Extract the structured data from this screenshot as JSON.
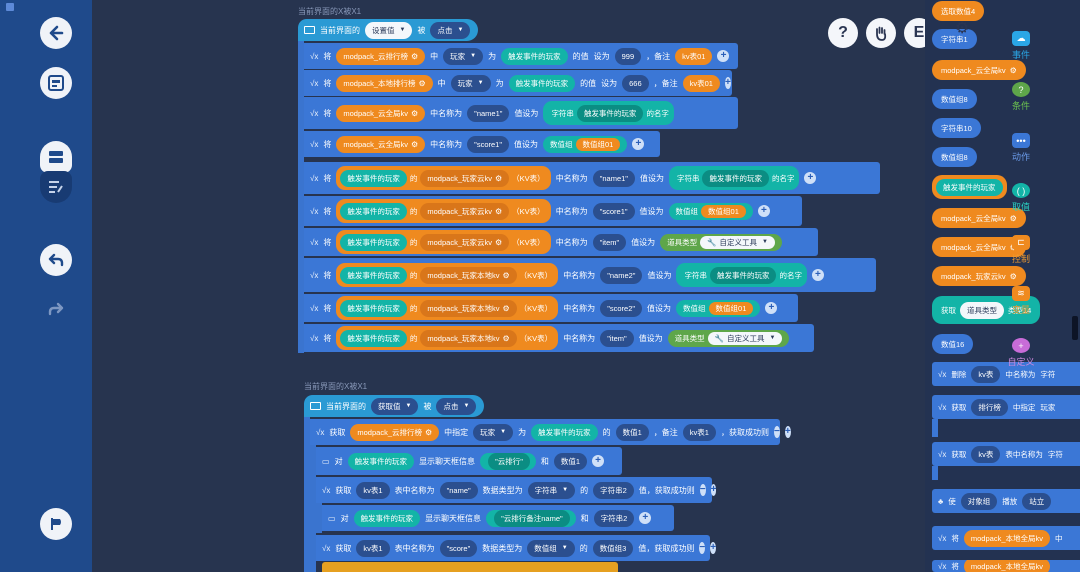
{
  "left_toolbar": {
    "items": [
      "back-arrow-icon",
      "code-block-icon",
      "stack-icon",
      "edit-list-icon",
      "undo-icon",
      "redo-icon",
      "run-flag-icon"
    ]
  },
  "scopes": [
    {
      "label": "当前界面的X被X1"
    },
    {
      "label": "当前界面的X被X1"
    }
  ],
  "hat1": {
    "prefix": "当前界面的",
    "target": "设置值",
    "mid": "被",
    "event": "点击"
  },
  "rows1": [
    {
      "parts": [
        "将",
        "modpack_云排行榜",
        "中",
        "玩家",
        "为",
        "触发事件的玩家",
        "的值",
        "设为",
        "999",
        "，备注",
        "kv表01"
      ]
    },
    {
      "parts": [
        "将",
        "modpack_本地排行榜",
        "中",
        "玩家",
        "为",
        "触发事件的玩家",
        "的值",
        "设为",
        "666",
        "，备注",
        "kv表01"
      ]
    },
    {
      "parts": [
        "将",
        "modpack_云全局kv",
        "中名称为",
        "\"name1\"",
        "值设为",
        "字符串",
        "触发事件的玩家",
        "的名字"
      ]
    },
    {
      "parts": [
        "将",
        "modpack_云全局kv",
        "中名称为",
        "\"score1\"",
        "值设为",
        "数值组",
        "数值组01"
      ]
    },
    {
      "parts": [
        "将",
        "触发事件的玩家",
        "的",
        "modpack_玩家云kv",
        "（KV表）",
        "中名称为",
        "\"name1\"",
        "值设为",
        "字符串",
        "触发事件的玩家",
        "的名字"
      ]
    },
    {
      "parts": [
        "将",
        "触发事件的玩家",
        "的",
        "modpack_玩家云kv",
        "（KV表）",
        "中名称为",
        "\"score1\"",
        "值设为",
        "数值组",
        "数值组01"
      ]
    },
    {
      "parts": [
        "将",
        "触发事件的玩家",
        "的",
        "modpack_玩家云kv",
        "（KV表）",
        "中名称为",
        "\"item\"",
        "值设为",
        "道具类型",
        "自定义工具"
      ]
    },
    {
      "parts": [
        "将",
        "触发事件的玩家",
        "的",
        "modpack_玩家本地kv",
        "（KV表）",
        "中名称为",
        "\"name2\"",
        "值设为",
        "字符串",
        "触发事件的玩家",
        "的名字"
      ]
    },
    {
      "parts": [
        "将",
        "触发事件的玩家",
        "的",
        "modpack_玩家本地kv",
        "（KV表）",
        "中名称为",
        "\"score2\"",
        "值设为",
        "数值组",
        "数值组01"
      ]
    },
    {
      "parts": [
        "将",
        "触发事件的玩家",
        "的",
        "modpack_玩家本地kv",
        "（KV表）",
        "中名称为",
        "\"item\"",
        "值设为",
        "道具类型",
        "自定义工具"
      ]
    }
  ],
  "hat2": {
    "prefix": "当前界面的",
    "target": "获取值",
    "mid": "被",
    "event": "点击"
  },
  "rows2": [
    {
      "parts": [
        "获取",
        "modpack_云排行榜",
        "中指定",
        "玩家",
        "为",
        "触发事件的玩家",
        "的",
        "数值1",
        "，备注",
        "kv表1",
        "，获取成功则"
      ]
    },
    {
      "parts": [
        "对",
        "触发事件的玩家",
        "显示聊天框信息",
        "\"云排行\"",
        "和",
        "数值1"
      ]
    },
    {
      "parts": [
        "获取",
        "kv表1",
        "表中名称为",
        "\"name\"",
        "数据类型为",
        "字符串",
        "的",
        "字符串2",
        "值，获取成功则"
      ]
    },
    {
      "parts": [
        "对",
        "触发事件的玩家",
        "显示聊天框信息",
        "\"云排行备注name\"",
        "和",
        "字符串2"
      ]
    },
    {
      "parts": [
        "获取",
        "kv表1",
        "表中名称为",
        "\"score\"",
        "数据类型为",
        "数值组",
        "的",
        "数值组3",
        "值，获取成功则"
      ]
    }
  ],
  "right_buttons": [
    "?",
    "hand",
    "E",
    "gear"
  ],
  "palette_items": [
    {
      "label": "选取数值4",
      "color": "#ef8a1f"
    },
    {
      "label": "字符串1",
      "color": "#3b77d6"
    },
    {
      "label": "modpack_云全局kv",
      "color": "#ef8a1f"
    },
    {
      "label": "数值组8",
      "color": "#3b77d6"
    },
    {
      "label": "字符串10",
      "color": "#3b77d6"
    },
    {
      "label": "数值组8",
      "color": "#3b77d6"
    },
    {
      "label": "触发事件的玩家",
      "color": "#ef8a1f"
    },
    {
      "label": "modpack_云全局kv",
      "color": "#ef8a1f"
    },
    {
      "label": "modpack_云全局kv",
      "color": "#ef8a1f"
    },
    {
      "label": "modpack_玩家云kv",
      "color": "#ef8a1f"
    },
    {
      "label": "获取",
      "sub": "道具类型",
      "sub2": "类型14",
      "color": "#13b4a7"
    },
    {
      "label": "数值16",
      "color": "#3b77d6"
    }
  ],
  "categories": [
    {
      "label": "事件",
      "color": "#2aa6e6",
      "text_color": "#2aa6e6"
    },
    {
      "label": "条件",
      "color": "#5ea64a",
      "text_color": "#6cc24f"
    },
    {
      "label": "动作",
      "color": "#3b77d6",
      "text_color": "#6a9ae8"
    },
    {
      "label": "取值",
      "color": "#13b4a7",
      "text_color": "#2ad0c0"
    },
    {
      "label": "控制",
      "color": "#ef8a1f",
      "text_color": "#ef9a30"
    },
    {
      "label": "变量",
      "color": "#ef8a1f",
      "text_color": "#ef9a30"
    },
    {
      "label": "自定义",
      "color": "#c86cd8",
      "text_color": "#d08ae0"
    }
  ],
  "palette_blocks": [
    {
      "parts": [
        "删除",
        "kv表",
        "中名称为",
        "字符"
      ]
    },
    {
      "parts": [
        "获取",
        "排行榜",
        "中指定",
        "玩家"
      ]
    },
    {
      "parts": [
        "获取",
        "kv表",
        "表中名称为",
        "字符"
      ]
    },
    {
      "parts": [
        "使",
        "对象组",
        "播放",
        "站立"
      ]
    },
    {
      "parts": [
        "将",
        "modpack_本地全局kv",
        "中"
      ]
    },
    {
      "parts": [
        "将",
        "modpack_本地全局kv"
      ]
    }
  ]
}
